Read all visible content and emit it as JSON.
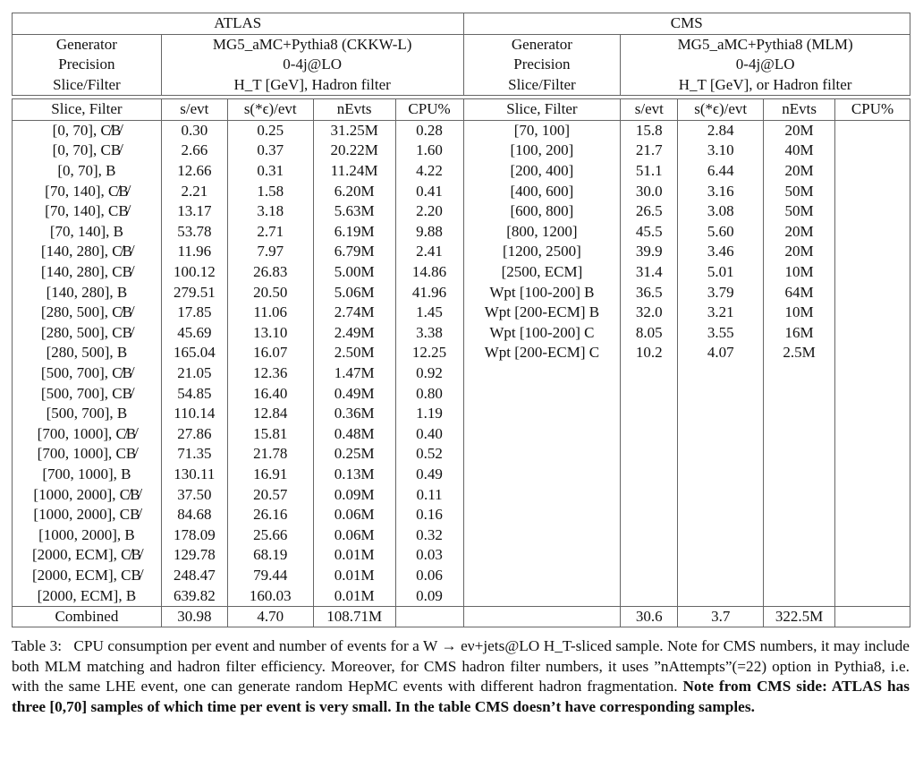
{
  "header": {
    "atlas": {
      "title": "ATLAS",
      "generator_label": "Generator",
      "generator": "MG5_aMC+Pythia8 (CKKW-L)",
      "precision_label": "Precision",
      "precision": "0-4j@LO",
      "slice_label": "Slice/Filter",
      "slice": "H_T [GeV], Hadron filter"
    },
    "cms": {
      "title": "CMS",
      "generator_label": "Generator",
      "generator": "MG5_aMC+Pythia8 (MLM)",
      "precision_label": "Precision",
      "precision": "0-4j@LO",
      "slice_label": "Slice/Filter",
      "slice": "H_T [GeV], or Hadron filter"
    }
  },
  "columns": [
    "Slice, Filter",
    "s/evt",
    "s(*ϵ)/evt",
    "nEvts",
    "CPU%"
  ],
  "atlas_rows": [
    [
      "[0, 70], C̸B̸",
      "0.30",
      "0.25",
      "31.25M",
      "0.28"
    ],
    [
      "[0, 70], CB̸",
      "2.66",
      "0.37",
      "20.22M",
      "1.60"
    ],
    [
      "[0, 70], B",
      "12.66",
      "0.31",
      "11.24M",
      "4.22"
    ],
    [
      "[70, 140], C̸B̸",
      "2.21",
      "1.58",
      "6.20M",
      "0.41"
    ],
    [
      "[70, 140], CB̸",
      "13.17",
      "3.18",
      "5.63M",
      "2.20"
    ],
    [
      "[70, 140], B",
      "53.78",
      "2.71",
      "6.19M",
      "9.88"
    ],
    [
      "[140, 280], C̸B̸",
      "11.96",
      "7.97",
      "6.79M",
      "2.41"
    ],
    [
      "[140, 280], CB̸",
      "100.12",
      "26.83",
      "5.00M",
      "14.86"
    ],
    [
      "[140, 280], B",
      "279.51",
      "20.50",
      "5.06M",
      "41.96"
    ],
    [
      "[280, 500], C̸B̸",
      "17.85",
      "11.06",
      "2.74M",
      "1.45"
    ],
    [
      "[280, 500], CB̸",
      "45.69",
      "13.10",
      "2.49M",
      "3.38"
    ],
    [
      "[280, 500], B",
      "165.04",
      "16.07",
      "2.50M",
      "12.25"
    ],
    [
      "[500, 700], C̸B̸",
      "21.05",
      "12.36",
      "1.47M",
      "0.92"
    ],
    [
      "[500, 700], CB̸",
      "54.85",
      "16.40",
      "0.49M",
      "0.80"
    ],
    [
      "[500, 700], B",
      "110.14",
      "12.84",
      "0.36M",
      "1.19"
    ],
    [
      "[700, 1000], C̸B̸",
      "27.86",
      "15.81",
      "0.48M",
      "0.40"
    ],
    [
      "[700, 1000], CB̸",
      "71.35",
      "21.78",
      "0.25M",
      "0.52"
    ],
    [
      "[700, 1000], B",
      "130.11",
      "16.91",
      "0.13M",
      "0.49"
    ],
    [
      "[1000, 2000], C̸B̸",
      "37.50",
      "20.57",
      "0.09M",
      "0.11"
    ],
    [
      "[1000, 2000], CB̸",
      "84.68",
      "26.16",
      "0.06M",
      "0.16"
    ],
    [
      "[1000, 2000], B",
      "178.09",
      "25.66",
      "0.06M",
      "0.32"
    ],
    [
      "[2000, ECM], C̸B̸",
      "129.78",
      "68.19",
      "0.01M",
      "0.03"
    ],
    [
      "[2000, ECM], CB̸",
      "248.47",
      "79.44",
      "0.01M",
      "0.06"
    ],
    [
      "[2000, ECM], B",
      "639.82",
      "160.03",
      "0.01M",
      "0.09"
    ]
  ],
  "cms_rows": [
    [
      "[70, 100]",
      "15.8",
      "2.84",
      "20M",
      ""
    ],
    [
      "[100, 200]",
      "21.7",
      "3.10",
      "40M",
      ""
    ],
    [
      "[200, 400]",
      "51.1",
      "6.44",
      "20M",
      ""
    ],
    [
      "[400, 600]",
      "30.0",
      "3.16",
      "50M",
      ""
    ],
    [
      "[600, 800]",
      "26.5",
      "3.08",
      "50M",
      ""
    ],
    [
      "[800, 1200]",
      "45.5",
      "5.60",
      "20M",
      ""
    ],
    [
      "[1200, 2500]",
      "39.9",
      "3.46",
      "20M",
      ""
    ],
    [
      "[2500, ECM]",
      "31.4",
      "5.01",
      "10M",
      ""
    ],
    [
      "Wpt [100-200] B",
      "36.5",
      "3.79",
      "64M",
      ""
    ],
    [
      "Wpt [200-ECM] B",
      "32.0",
      "3.21",
      "10M",
      ""
    ],
    [
      "Wpt [100-200] C",
      "8.05",
      "3.55",
      "16M",
      ""
    ],
    [
      "Wpt [200-ECM] C",
      "10.2",
      "4.07",
      "2.5M",
      ""
    ]
  ],
  "combined": {
    "label": "Combined",
    "atlas": [
      "30.98",
      "4.70",
      "108.71M",
      ""
    ],
    "cms": [
      "",
      "30.6",
      "3.7",
      "322.5M",
      ""
    ]
  },
  "caption": {
    "label": "Table 3:",
    "text": "CPU consumption per event and number of events for a W → eν+jets@LO H_T-sliced sample. Note for CMS numbers, it may include both MLM matching and hadron filter efficiency. Moreover, for CMS hadron filter numbers, it uses ”nAttempts”(=22) option in Pythia8, i.e. with the same LHE event, one can generate random HepMC events with different hadron fragmentation.",
    "bold": "Note from CMS side: ATLAS has three [0,70] samples of which time per event is very small. In the table CMS doesn’t have corresponding samples."
  }
}
